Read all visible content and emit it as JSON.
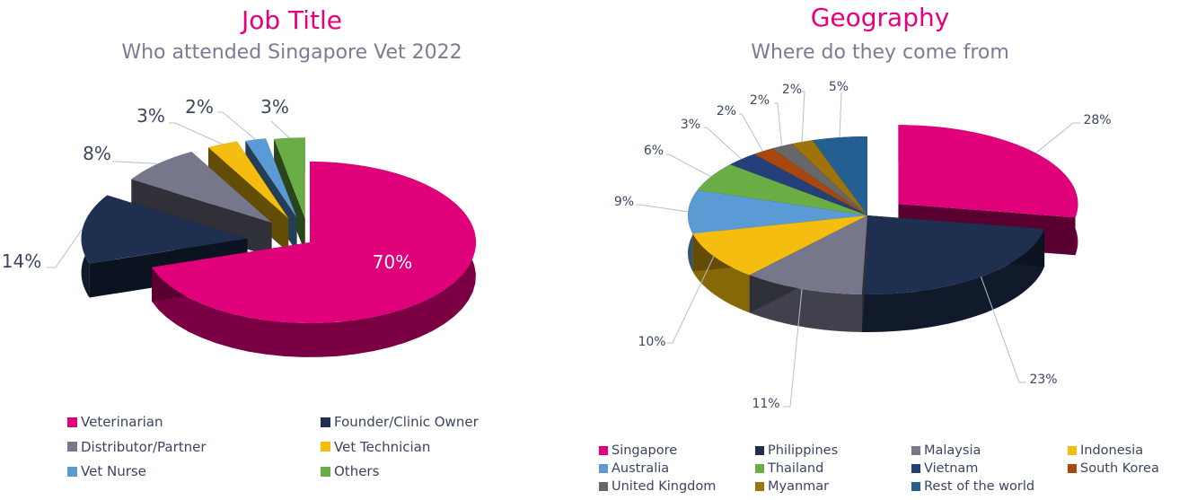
{
  "chart_data": [
    {
      "type": "pie",
      "title": "Job Title",
      "subtitle": "Who attended Singapore Vet 2022",
      "categories": [
        "Veterinarian",
        "Founder/Clinic Owner",
        "Distributor/Partner",
        "Vet Technician",
        "Vet Nurse",
        "Others"
      ],
      "values": [
        70,
        14,
        8,
        3,
        2,
        3
      ],
      "labels": [
        "70%",
        "14%",
        "8%",
        "3%",
        "2%",
        "3%"
      ],
      "colors": [
        "#e0007a",
        "#1e2f4f",
        "#77778c",
        "#f5bd0f",
        "#5b9bd5",
        "#6aad45"
      ],
      "legend_position": "bottom"
    },
    {
      "type": "pie",
      "title": "Geography",
      "subtitle": "Where do they come from",
      "categories": [
        "Singapore",
        "Philippines",
        "Malaysia",
        "Indonesia",
        "Australia",
        "Thailand",
        "Vietnam",
        "South Korea",
        "United Kingdom",
        "Myanmar",
        "Rest of the world"
      ],
      "values": [
        28,
        23,
        11,
        10,
        9,
        6,
        3,
        2,
        2,
        2,
        5
      ],
      "labels": [
        "28%",
        "23%",
        "11%",
        "10%",
        "9%",
        "6%",
        "3%",
        "2%",
        "2%",
        "2%",
        "5%"
      ],
      "colors": [
        "#e0007a",
        "#1e2f4f",
        "#77778c",
        "#f5bd0f",
        "#5b9bd5",
        "#6aad45",
        "#253f7a",
        "#a6470f",
        "#676767",
        "#9e740a",
        "#255e91"
      ],
      "legend_position": "bottom"
    }
  ]
}
